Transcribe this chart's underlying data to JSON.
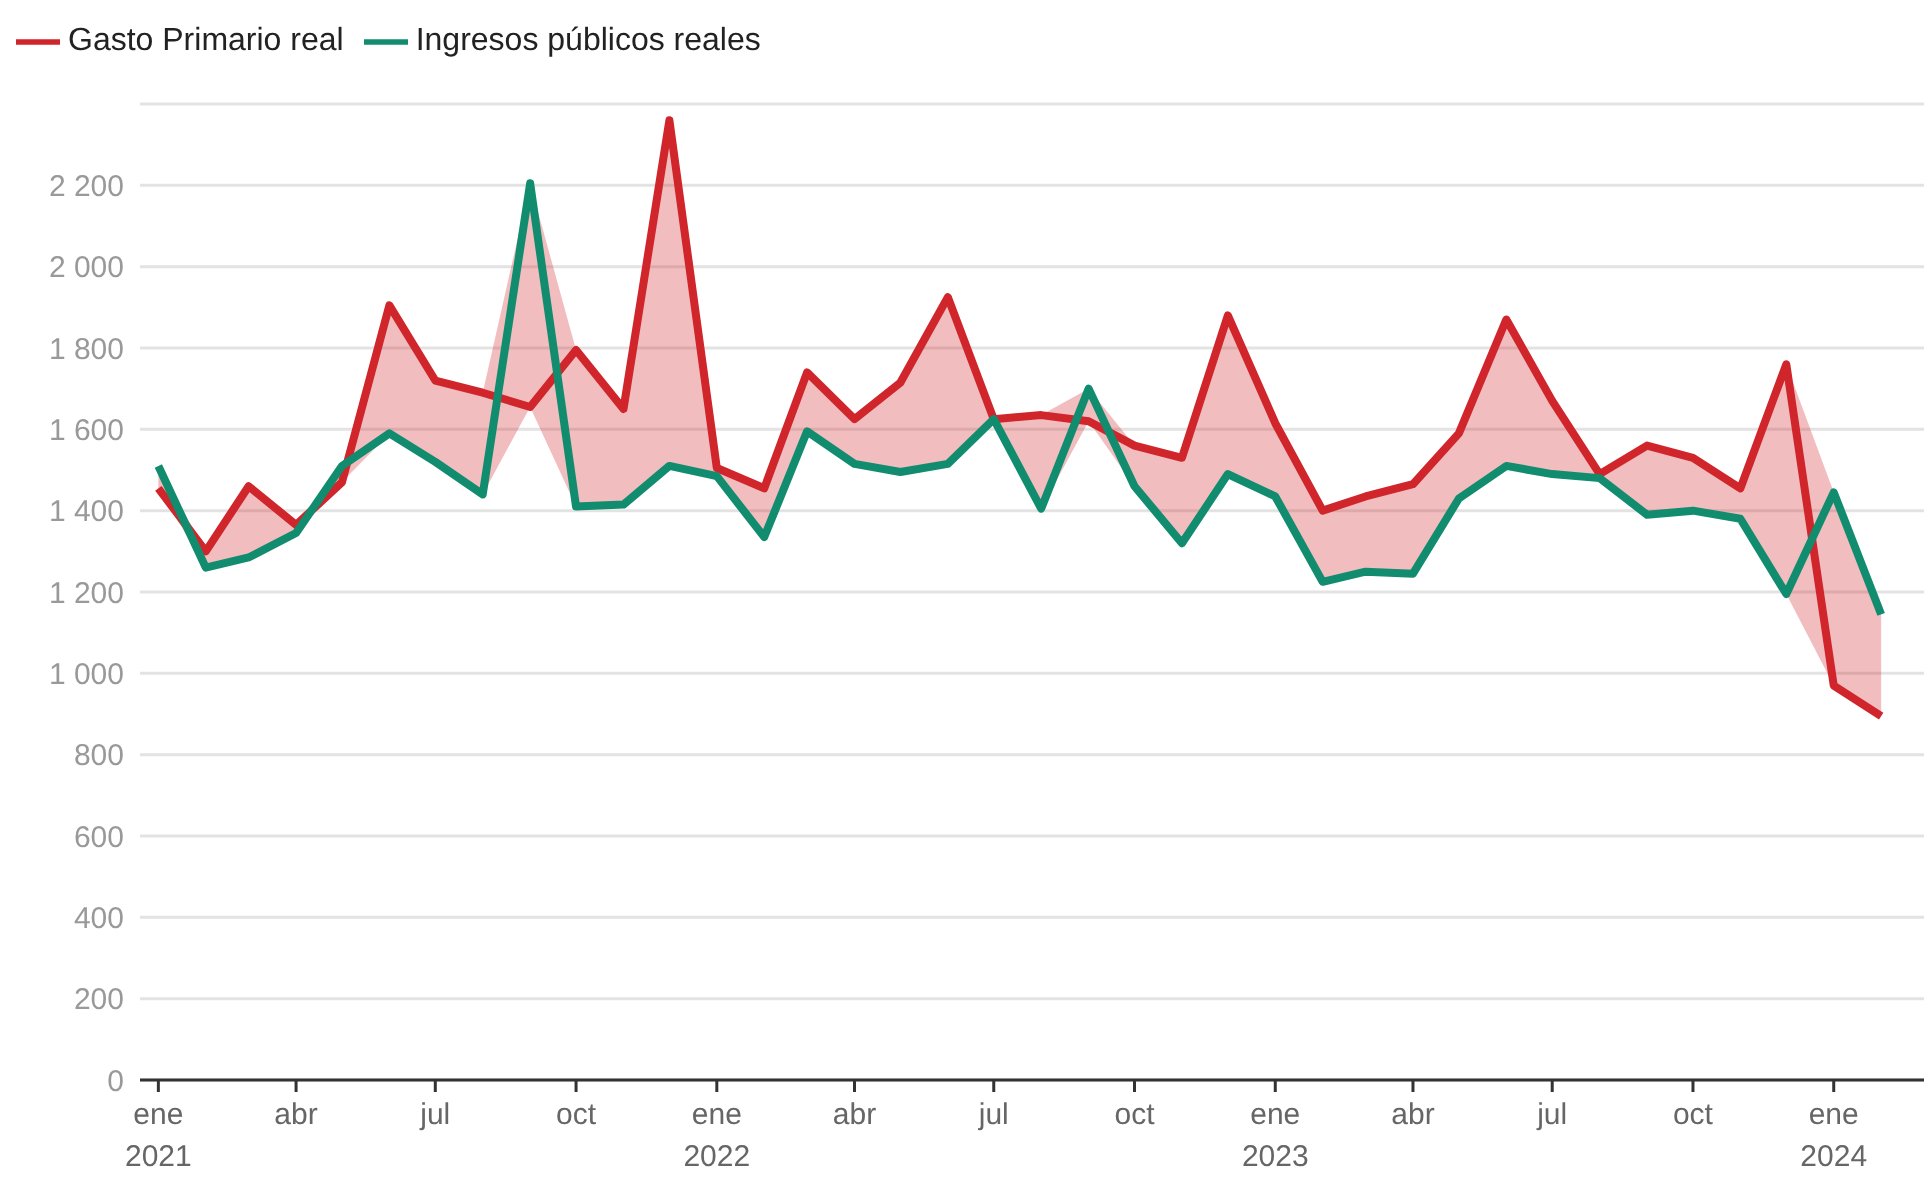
{
  "chart_data": {
    "type": "line",
    "x": [
      "2021-01",
      "2021-02",
      "2021-03",
      "2021-04",
      "2021-05",
      "2021-06",
      "2021-07",
      "2021-08",
      "2021-09",
      "2021-10",
      "2021-11",
      "2021-12",
      "2022-01",
      "2022-02",
      "2022-03",
      "2022-04",
      "2022-05",
      "2022-06",
      "2022-07",
      "2022-08",
      "2022-09",
      "2022-10",
      "2022-11",
      "2022-12",
      "2023-01",
      "2023-02",
      "2023-03",
      "2023-04",
      "2023-05",
      "2023-06",
      "2023-07",
      "2023-08",
      "2023-09",
      "2023-10",
      "2023-11",
      "2023-12",
      "2024-01",
      "2024-02"
    ],
    "series": [
      {
        "name": "Gasto Primario real",
        "color": "#d0252b",
        "values": [
          1455,
          1300,
          1460,
          1365,
          1470,
          1905,
          1720,
          1690,
          1655,
          1795,
          1650,
          2360,
          1505,
          1455,
          1740,
          1625,
          1715,
          1925,
          1625,
          1635,
          1620,
          1560,
          1530,
          1880,
          1615,
          1400,
          1435,
          1465,
          1590,
          1870,
          1670,
          1490,
          1560,
          1530,
          1455,
          1760,
          970,
          895
        ]
      },
      {
        "name": "Ingresos públicos reales",
        "color": "#128c6e",
        "values": [
          1510,
          1260,
          1285,
          1345,
          1510,
          1590,
          1520,
          1440,
          2205,
          1410,
          1415,
          1510,
          1485,
          1335,
          1595,
          1515,
          1495,
          1515,
          1625,
          1405,
          1700,
          1460,
          1320,
          1490,
          1435,
          1225,
          1250,
          1245,
          1430,
          1510,
          1490,
          1480,
          1390,
          1400,
          1380,
          1195,
          1445,
          1145
        ]
      }
    ],
    "xlim": [
      "2020-12-20",
      "2024-02-29"
    ],
    "xticks": [
      {
        "value": "2021-01",
        "label": "ene\n2021"
      },
      {
        "value": "2021-04",
        "label": "abr"
      },
      {
        "value": "2021-07",
        "label": "jul"
      },
      {
        "value": "2021-10",
        "label": "oct"
      },
      {
        "value": "2022-01",
        "label": "ene\n2022"
      },
      {
        "value": "2022-04",
        "label": "abr"
      },
      {
        "value": "2022-07",
        "label": "jul"
      },
      {
        "value": "2022-10",
        "label": "oct"
      },
      {
        "value": "2023-01",
        "label": "ene\n2023"
      },
      {
        "value": "2023-04",
        "label": "abr"
      },
      {
        "value": "2023-07",
        "label": "jul"
      },
      {
        "value": "2023-10",
        "label": "oct"
      },
      {
        "value": "2024-01",
        "label": "ene\n2024"
      }
    ],
    "ylim": [
      0,
      2400
    ],
    "yticks": [
      0,
      200,
      400,
      600,
      800,
      {
        "value": 1000,
        "label": "1 000"
      },
      {
        "value": 1200,
        "label": "1 200"
      },
      {
        "value": 1400,
        "label": "1 400"
      },
      {
        "value": 1600,
        "label": "1 600"
      },
      {
        "value": 1800,
        "label": "1 800"
      },
      {
        "value": 2000,
        "label": "2 000"
      },
      {
        "value": 2200,
        "label": "2 200"
      }
    ],
    "grid": "y",
    "legend": "top left",
    "marker": "none",
    "line_style": "solid"
  }
}
